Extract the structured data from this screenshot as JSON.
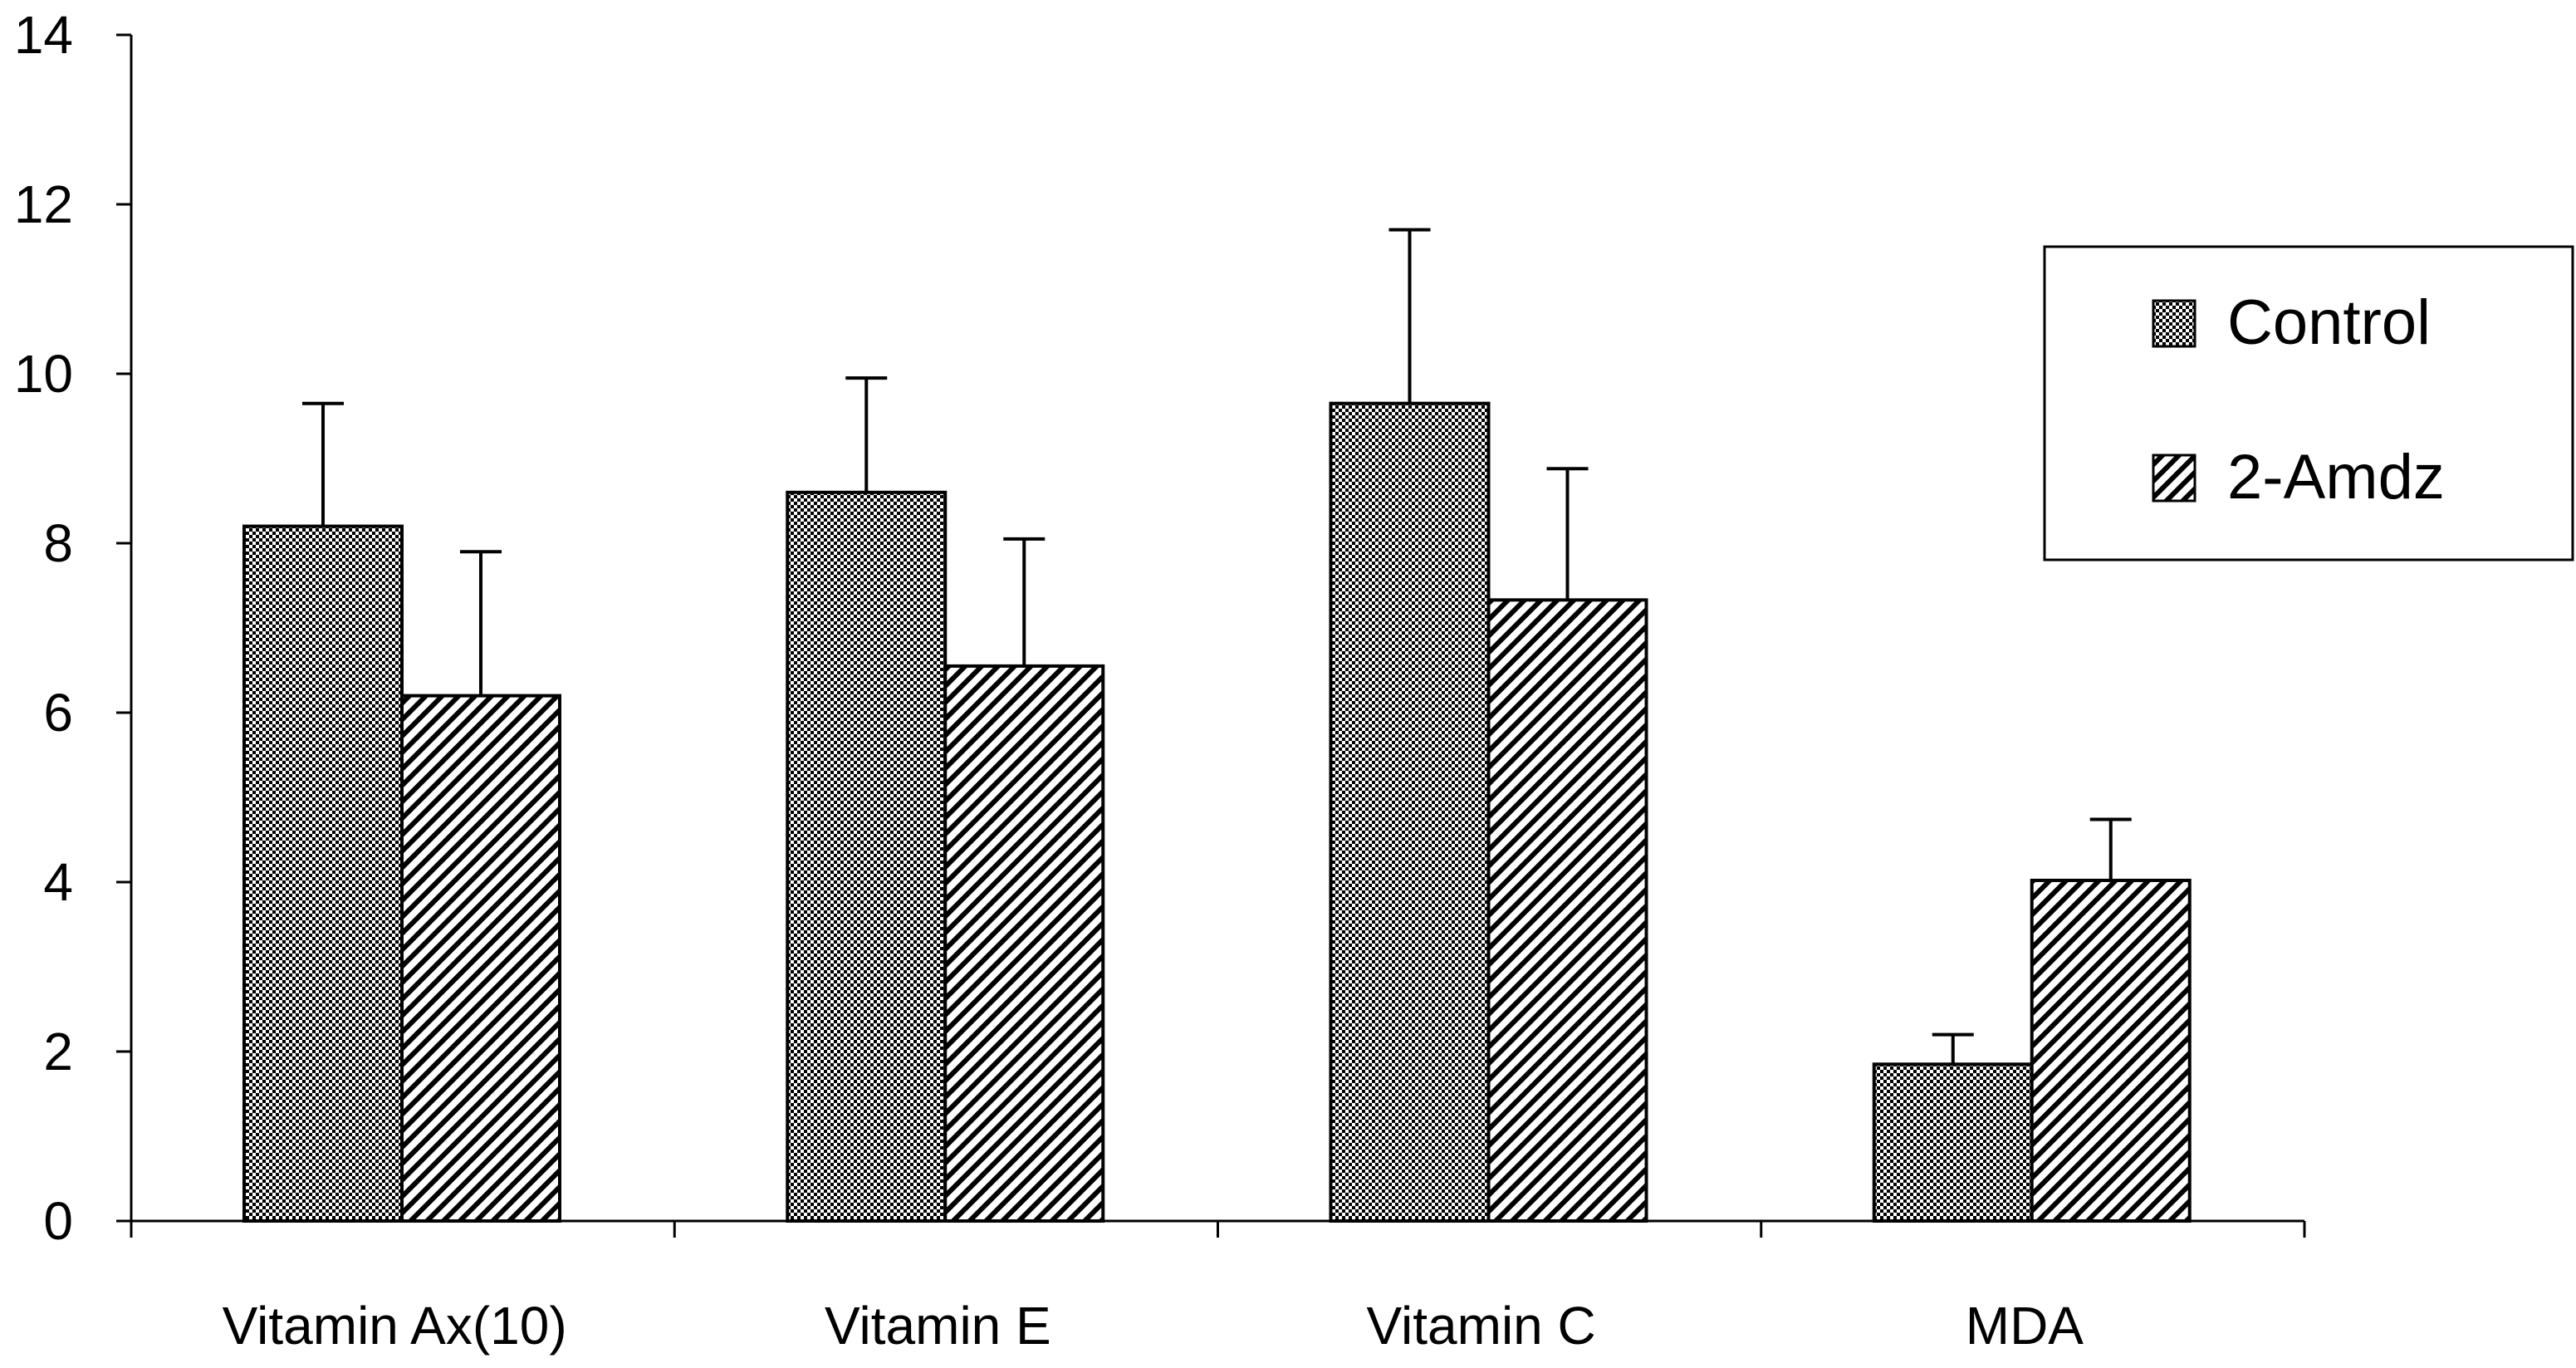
{
  "chart_data": {
    "type": "bar",
    "title": "",
    "xlabel": "",
    "ylabel": "",
    "ylim": [
      0,
      14
    ],
    "yticks": [
      0,
      2,
      4,
      6,
      8,
      10,
      12,
      14
    ],
    "grid": false,
    "legend_position": "top-right",
    "categories": [
      "Vitamin Ax(10)",
      "Vitamin E",
      "Vitamin C",
      "MDA"
    ],
    "series": [
      {
        "name": "Control",
        "pattern": "checkered",
        "values": [
          8.2,
          8.6,
          9.65,
          1.85
        ],
        "error": [
          1.45,
          1.35,
          2.05,
          0.35
        ]
      },
      {
        "name": "2-Amdz",
        "pattern": "diagonal-hatch",
        "values": [
          6.2,
          6.55,
          7.33,
          4.02
        ],
        "error": [
          1.7,
          1.5,
          1.55,
          0.72
        ]
      }
    ],
    "colors": {
      "bar_outline": "#000000",
      "background": "#ffffff"
    }
  }
}
